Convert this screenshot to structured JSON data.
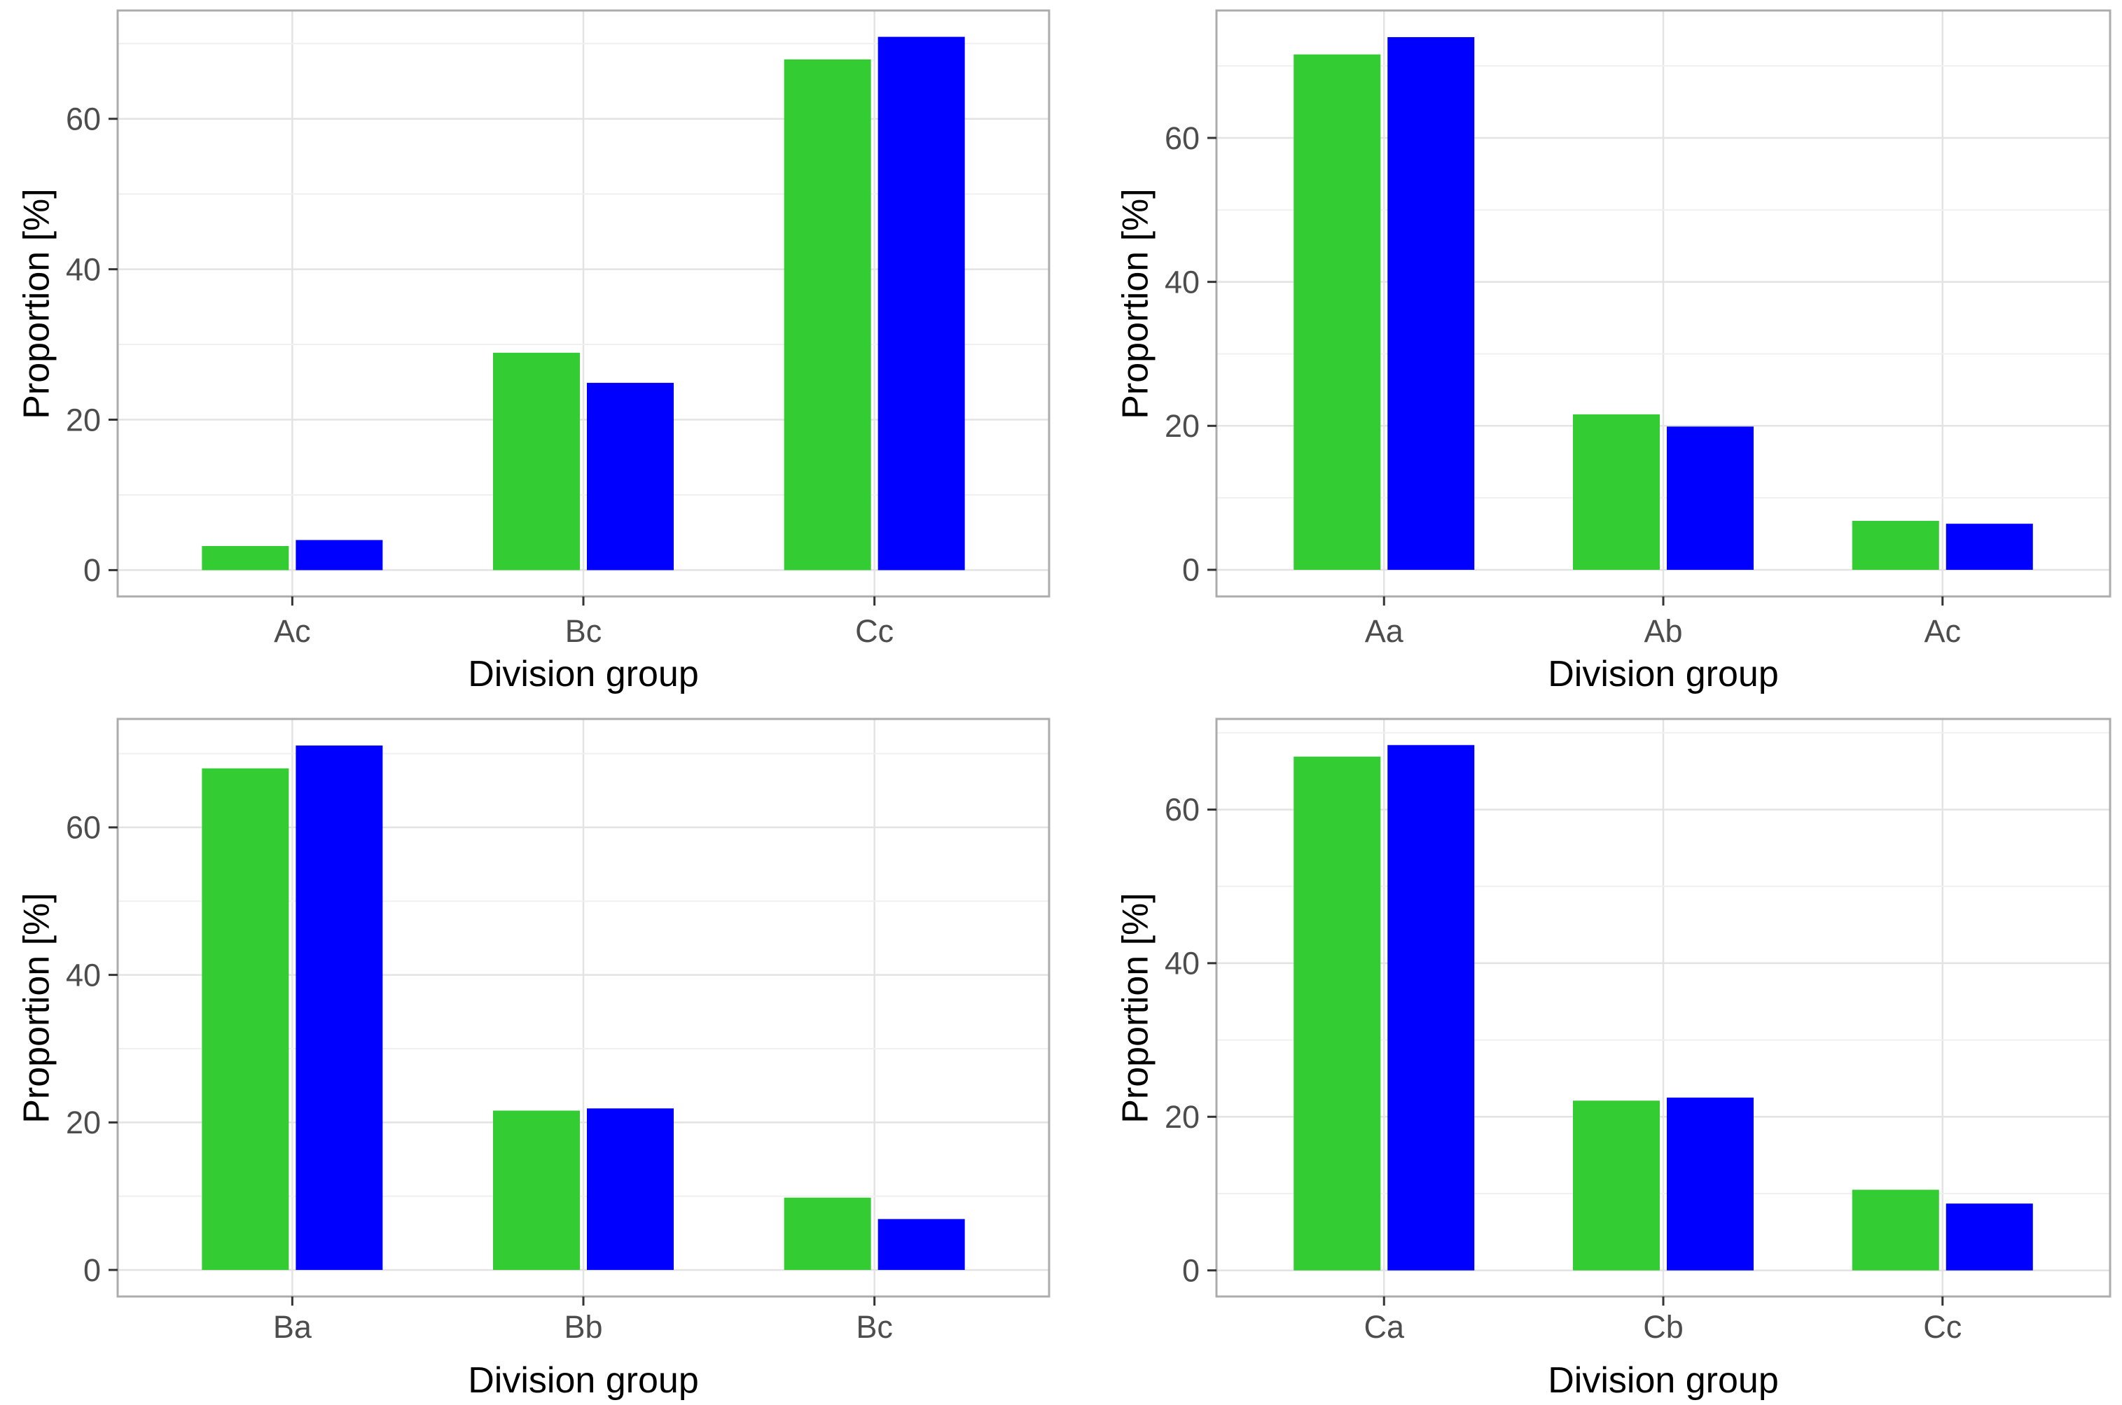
{
  "figure": {
    "description": "2x2 grid of grouped bar charts",
    "background": "#FFFFFF"
  },
  "chart_data": [
    {
      "type": "bar",
      "position": "top-left",
      "xlabel": "Division group",
      "ylabel": "Proportion [%]",
      "categories": [
        "Ac",
        "Bc",
        "Cc"
      ],
      "series": [
        {
          "name": "green",
          "color": "#33CC33",
          "values": [
            3.2,
            28.9,
            67.9
          ]
        },
        {
          "name": "blue",
          "color": "#0000FF",
          "values": [
            4.0,
            24.9,
            70.9
          ]
        }
      ],
      "y_ticks": [
        0,
        20,
        40,
        60
      ],
      "y_minor_ticks": [
        10,
        30,
        50,
        70
      ],
      "ylim": [
        -3.5,
        74.4
      ],
      "grid": true,
      "legend": "none"
    },
    {
      "type": "bar",
      "position": "top-right",
      "xlabel": "Division group",
      "ylabel": "Proportion [%]",
      "categories": [
        "Aa",
        "Ab",
        "Ac"
      ],
      "series": [
        {
          "name": "green",
          "color": "#33CC33",
          "values": [
            71.6,
            21.6,
            6.8
          ]
        },
        {
          "name": "blue",
          "color": "#0000FF",
          "values": [
            74.0,
            19.9,
            6.4
          ]
        }
      ],
      "y_ticks": [
        0,
        20,
        40,
        60
      ],
      "y_minor_ticks": [
        10,
        30,
        50,
        70
      ],
      "ylim": [
        -3.7,
        77.7
      ],
      "grid": true,
      "legend": "none"
    },
    {
      "type": "bar",
      "position": "bottom-left",
      "xlabel": "Division group",
      "ylabel": "Proportion [%]",
      "categories": [
        "Ba",
        "Bb",
        "Bc"
      ],
      "series": [
        {
          "name": "green",
          "color": "#33CC33",
          "values": [
            68.0,
            21.6,
            9.8
          ]
        },
        {
          "name": "blue",
          "color": "#0000FF",
          "values": [
            71.1,
            21.9,
            6.9
          ]
        }
      ],
      "y_ticks": [
        0,
        20,
        40,
        60
      ],
      "y_minor_ticks": [
        10,
        30,
        50,
        70
      ],
      "ylim": [
        -3.6,
        74.7
      ],
      "grid": true,
      "legend": "none"
    },
    {
      "type": "bar",
      "position": "bottom-right",
      "xlabel": "Division group",
      "ylabel": "Proportion [%]",
      "categories": [
        "Ca",
        "Cb",
        "Cc"
      ],
      "series": [
        {
          "name": "green",
          "color": "#33CC33",
          "values": [
            66.9,
            22.1,
            10.5
          ]
        },
        {
          "name": "blue",
          "color": "#0000FF",
          "values": [
            68.4,
            22.5,
            8.7
          ]
        }
      ],
      "y_ticks": [
        0,
        20,
        40,
        60
      ],
      "y_minor_ticks": [
        10,
        30,
        50,
        70
      ],
      "ylim": [
        -3.4,
        71.8
      ],
      "grid": true,
      "legend": "none"
    }
  ]
}
